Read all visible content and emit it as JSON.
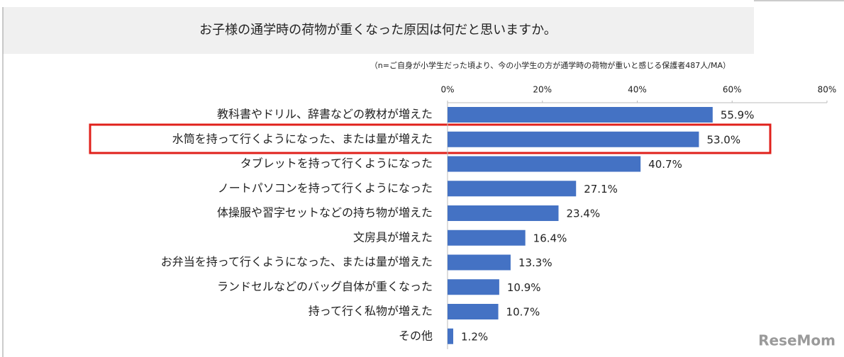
{
  "chart_data": {
    "type": "hbar",
    "title": "お子様の通学時の荷物が重くなった原因は何だと思いますか。",
    "subtitle": "（n=ご自身が小学生だった頃より、今の小学生の方が通学時の荷物が重いと感じる保護者487人/MA）",
    "categories": [
      "教科書やドリル、辞書などの教材が増えた",
      "水筒を持って行くようになった、または量が増えた",
      "タブレットを持って行くようになった",
      "ノートパソコンを持って行くようになった",
      "体操服や習字セットなどの持ち物が増えた",
      "文房具が増えた",
      "お弁当を持って行くようになった、または量が増えた",
      "ランドセルなどのバッグ自体が重くなった",
      "持って行く私物が増えた",
      "その他"
    ],
    "values": [
      55.9,
      53.0,
      40.7,
      27.1,
      23.4,
      16.4,
      13.3,
      10.9,
      10.7,
      1.2
    ],
    "value_labels": [
      "55.9%",
      "53.0%",
      "40.7%",
      "27.1%",
      "23.4%",
      "16.4%",
      "13.3%",
      "10.9%",
      "10.7%",
      "1.2%"
    ],
    "color": "#4472c4",
    "xlim": [
      0,
      80
    ],
    "xticks": [
      {
        "value": 0,
        "label": "0%"
      },
      {
        "value": 20,
        "label": "20%"
      },
      {
        "value": 40,
        "label": "40%"
      },
      {
        "value": 60,
        "label": "60%"
      },
      {
        "value": 80,
        "label": "80%"
      }
    ],
    "watermark": "ReseMom"
  }
}
